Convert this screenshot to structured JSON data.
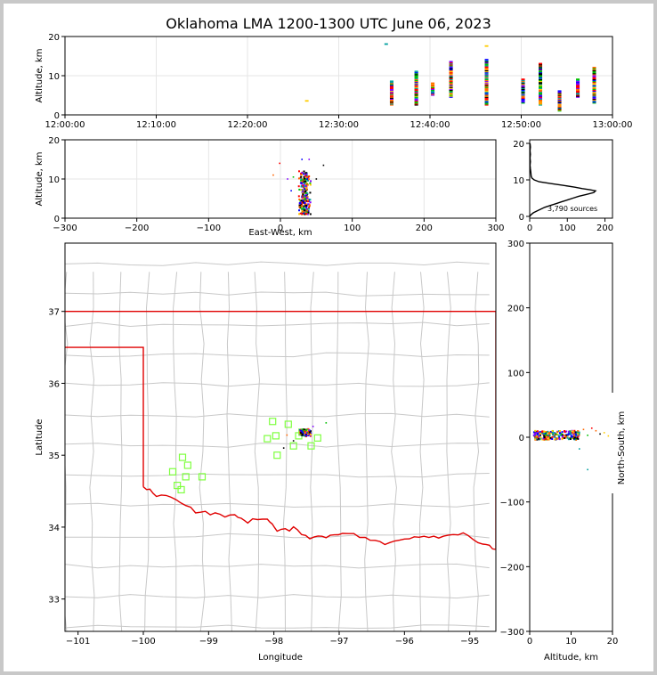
{
  "figure": {
    "title": "Oklahoma LMA 1200-1300 UTC June 06, 2023",
    "source_count_label": "3,790 sources"
  },
  "colors": {
    "state_border": "#e00000",
    "county_lines": "#c8c8c8",
    "station_marker": "#7fff40",
    "source_palette": [
      "#0000ff",
      "#8000ff",
      "#00a0a0",
      "#00c000",
      "#ffcc00",
      "#ff6600",
      "#ff0000",
      "#000000"
    ]
  },
  "chart_data": [
    {
      "type": "scatter",
      "name": "time-height",
      "xlabel": "",
      "ylabel": "Altitude, km",
      "xlim_minutes": [
        0,
        60
      ],
      "ylim": [
        0,
        20
      ],
      "x_ticks": [
        "12:00:00",
        "12:10:00",
        "12:20:00",
        "12:30:00",
        "12:40:00",
        "12:50:00",
        "13:00:00"
      ],
      "y_ticks": [
        0,
        10,
        20
      ],
      "grid": true,
      "columns": [
        {
          "t": 35.8,
          "bottom": 2.5,
          "top": 8.5
        },
        {
          "t": 35.2,
          "bottom": 18,
          "top": 18
        },
        {
          "t": 38.5,
          "bottom": 2.5,
          "top": 11
        },
        {
          "t": 40.3,
          "bottom": 5,
          "top": 8
        },
        {
          "t": 42.3,
          "bottom": 4.5,
          "top": 13.5
        },
        {
          "t": 46.2,
          "bottom": 2.5,
          "top": 14
        },
        {
          "t": 46.2,
          "bottom": 17.5,
          "top": 17.5
        },
        {
          "t": 50.2,
          "bottom": 3,
          "top": 9
        },
        {
          "t": 52.1,
          "bottom": 2.5,
          "top": 13
        },
        {
          "t": 54.2,
          "bottom": 1,
          "top": 6
        },
        {
          "t": 56.2,
          "bottom": 4.5,
          "top": 9
        },
        {
          "t": 58.0,
          "bottom": 3,
          "top": 12
        },
        {
          "t": 26.5,
          "bottom": 3.5,
          "top": 3.5
        }
      ]
    },
    {
      "type": "scatter",
      "name": "east-west-height",
      "xlabel": "East-West, km",
      "ylabel": "Altitude, km",
      "xlim": [
        -300,
        300
      ],
      "ylim": [
        0,
        20
      ],
      "x_ticks": [
        -300,
        -200,
        -100,
        0,
        100,
        200,
        300
      ],
      "y_ticks": [
        0,
        10,
        20
      ],
      "grid": true,
      "core": {
        "x_min": 25,
        "x_max": 43,
        "alt_min": 1,
        "alt_max": 12
      },
      "outliers": [
        {
          "x": -1,
          "alt": 14
        },
        {
          "x": 30,
          "alt": 15
        },
        {
          "x": 40,
          "alt": 15
        },
        {
          "x": 60,
          "alt": 13.5
        },
        {
          "x": 10,
          "alt": 10
        },
        {
          "x": 18,
          "alt": 10.5
        },
        {
          "x": 50,
          "alt": 10
        },
        {
          "x": -10,
          "alt": 11
        },
        {
          "x": 15,
          "alt": 7
        }
      ]
    },
    {
      "type": "line",
      "name": "altitude-histogram",
      "xlabel": "",
      "ylabel": "",
      "xlim": [
        0,
        220
      ],
      "ylim": [
        0,
        20
      ],
      "x_ticks": [
        0,
        100,
        200
      ],
      "y_ticks": [
        0,
        10,
        20
      ],
      "points": [
        [
          0,
          0
        ],
        [
          4,
          0.5
        ],
        [
          10,
          1
        ],
        [
          20,
          1.5
        ],
        [
          30,
          2
        ],
        [
          40,
          2.5
        ],
        [
          55,
          3
        ],
        [
          70,
          3.5
        ],
        [
          85,
          4
        ],
        [
          100,
          4.5
        ],
        [
          115,
          5
        ],
        [
          130,
          5.5
        ],
        [
          150,
          6
        ],
        [
          170,
          6.5
        ],
        [
          175,
          7
        ],
        [
          160,
          7.3
        ],
        [
          140,
          7.6
        ],
        [
          120,
          8
        ],
        [
          90,
          8.5
        ],
        [
          55,
          9
        ],
        [
          25,
          9.5
        ],
        [
          12,
          10
        ],
        [
          6,
          10.5
        ],
        [
          4,
          11
        ],
        [
          3,
          12
        ],
        [
          2,
          13
        ],
        [
          1,
          14
        ],
        [
          2,
          15
        ],
        [
          1,
          16
        ],
        [
          2,
          17
        ],
        [
          1,
          18
        ],
        [
          2,
          19
        ],
        [
          1,
          20
        ]
      ]
    },
    {
      "type": "scatter",
      "name": "plan-view",
      "xlabel": "Longitude",
      "ylabel": "Latitude",
      "xlim": [
        -101.2,
        -94.6
      ],
      "ylim": [
        32.55,
        37.95
      ],
      "x_ticks": [
        -101,
        -100,
        -99,
        -98,
        -97,
        -96,
        -95
      ],
      "y_ticks": [
        33,
        34,
        35,
        36,
        37
      ],
      "stations": [
        [
          -99.4,
          34.97
        ],
        [
          -99.32,
          34.86
        ],
        [
          -99.55,
          34.77
        ],
        [
          -99.35,
          34.7
        ],
        [
          -99.1,
          34.7
        ],
        [
          -99.48,
          34.58
        ],
        [
          -99.42,
          34.52
        ],
        [
          -98.02,
          35.47
        ],
        [
          -98.1,
          35.23
        ],
        [
          -97.97,
          35.27
        ],
        [
          -97.78,
          35.43
        ],
        [
          -97.62,
          35.27
        ],
        [
          -97.7,
          35.13
        ],
        [
          -97.95,
          35.0
        ],
        [
          -97.43,
          35.13
        ],
        [
          -97.33,
          35.24
        ],
        [
          -97.57,
          35.32
        ]
      ],
      "core": {
        "lon_min": -97.62,
        "lon_max": -97.42,
        "lat_min": 35.26,
        "lat_max": 35.37
      },
      "outliers": [
        [
          -97.8,
          35.28
        ],
        [
          -97.7,
          35.2
        ],
        [
          -97.4,
          35.4
        ],
        [
          -97.2,
          35.45
        ],
        [
          -97.85,
          35.1
        ]
      ]
    },
    {
      "type": "scatter",
      "name": "north-south-height",
      "xlabel": "Altitude, km",
      "ylabel": "North-South, km",
      "xlim": [
        0,
        20
      ],
      "ylim": [
        -300,
        300
      ],
      "x_ticks": [
        0,
        10,
        20
      ],
      "y_ticks": [
        -300,
        -200,
        -100,
        0,
        100,
        200,
        300
      ],
      "core": {
        "alt_min": 1,
        "alt_max": 12,
        "y_min": -4,
        "y_max": 10
      },
      "outliers": [
        [
          14,
          -50
        ],
        [
          12,
          -18
        ],
        [
          15,
          14
        ],
        [
          17,
          5
        ],
        [
          18,
          7
        ],
        [
          14,
          3
        ],
        [
          16,
          10
        ],
        [
          13,
          12
        ],
        [
          19,
          2
        ]
      ]
    }
  ]
}
